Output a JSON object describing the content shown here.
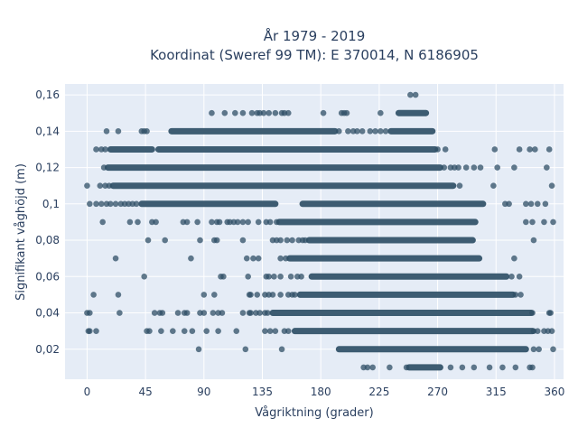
{
  "chart_data": {
    "type": "scatter",
    "title_line1": "År 1979 - 2019",
    "title_line2": "Koordinat (Sweref 99 TM): E 370014, N 6186905",
    "xlabel": "Vågriktning (grader)",
    "ylabel": "Signifikant våghöjd (m)",
    "xlim": [
      -17,
      367
    ],
    "ylim": [
      0.0035,
      0.166
    ],
    "x_ticks": [
      0,
      45,
      90,
      135,
      180,
      225,
      270,
      315,
      360
    ],
    "x_tick_labels": [
      "0",
      "45",
      "90",
      "135",
      "180",
      "225",
      "270",
      "315",
      "360"
    ],
    "y_ticks": [
      0.02,
      0.04,
      0.06,
      0.08,
      0.1,
      0.12,
      0.14,
      0.16
    ],
    "y_tick_labels": [
      "0,02",
      "0,04",
      "0,06",
      "0,08",
      "0,1",
      "0,12",
      "0,14",
      "0,16"
    ],
    "grid": true,
    "plot_background": "#e5ecf6",
    "marker_color": "#2f4f66",
    "levels": [
      {
        "y": 0.01,
        "bands": [
          [
            248,
            272
          ]
        ],
        "x": [
          213,
          216,
          220,
          233,
          246,
          280,
          289,
          298,
          310,
          320,
          330,
          341,
          343
        ]
      },
      {
        "y": 0.02,
        "bands": [
          [
            194,
            338
          ]
        ],
        "x": [
          86,
          122,
          150,
          344,
          348,
          359
        ]
      },
      {
        "y": 0.03,
        "bands": [
          [
            160,
            343
          ]
        ],
        "x": [
          1,
          2,
          7,
          46,
          48,
          57,
          66,
          75,
          81,
          92,
          101,
          115,
          137,
          141,
          145,
          152,
          155,
          344,
          347,
          352,
          355,
          358
        ]
      },
      {
        "y": 0.04,
        "bands": [
          [
            143,
            342
          ]
        ],
        "x": [
          0,
          2,
          25,
          52,
          56,
          58,
          70,
          75,
          77,
          87,
          90,
          97,
          101,
          104,
          120,
          125,
          126,
          130,
          133,
          137,
          139,
          343,
          356,
          357
        ]
      },
      {
        "y": 0.05,
        "bands": [
          [
            164,
            328
          ]
        ],
        "x": [
          5,
          24,
          90,
          98,
          125,
          126,
          131,
          137,
          140,
          143,
          149,
          155,
          158,
          160,
          330,
          334
        ]
      },
      {
        "y": 0.06,
        "bands": [
          [
            173,
            323
          ]
        ],
        "x": [
          44,
          103,
          105,
          124,
          138,
          140,
          144,
          149,
          157,
          162,
          165,
          327,
          333
        ]
      },
      {
        "y": 0.07,
        "bands": [
          [
            156,
            302
          ]
        ],
        "x": [
          22,
          80,
          123,
          128,
          132,
          149,
          153,
          329
        ]
      },
      {
        "y": 0.08,
        "bands": [
          [
            171,
            297
          ]
        ],
        "x": [
          47,
          60,
          87,
          98,
          100,
          120,
          143,
          146,
          149,
          154,
          158,
          163,
          166,
          168,
          344
        ]
      },
      {
        "y": 0.09,
        "bands": [
          [
            148,
            299
          ]
        ],
        "x": [
          12,
          33,
          39,
          50,
          53,
          74,
          77,
          85,
          96,
          100,
          102,
          108,
          110,
          113,
          116,
          120,
          124,
          132,
          138,
          141,
          146,
          338,
          343,
          352,
          359
        ]
      },
      {
        "y": 0.1,
        "bands": [
          [
            166,
            305
          ],
          [
            42,
            145
          ]
        ],
        "x": [
          2,
          7,
          11,
          15,
          18,
          22,
          26,
          29,
          32,
          35,
          38,
          322,
          325,
          338,
          342,
          347,
          353
        ]
      },
      {
        "y": 0.11,
        "bands": [
          [
            20,
            282
          ]
        ],
        "x": [
          0,
          10,
          14,
          17,
          287,
          313,
          358
        ]
      },
      {
        "y": 0.12,
        "bands": [
          [
            16,
            272
          ]
        ],
        "x": [
          13,
          275,
          280,
          283,
          286,
          292,
          298,
          303,
          316,
          329,
          354
        ]
      },
      {
        "y": 0.13,
        "bands": [
          [
            55,
            268
          ],
          [
            18,
            50
          ]
        ],
        "x": [
          7,
          11,
          14,
          270,
          276,
          314,
          333,
          341,
          345,
          356
        ]
      },
      {
        "y": 0.14,
        "bands": [
          [
            65,
            191
          ],
          [
            234,
            266
          ]
        ],
        "x": [
          15,
          24,
          42,
          44,
          46,
          194,
          201,
          205,
          208,
          212,
          218,
          222,
          226,
          230
        ]
      },
      {
        "y": 0.15,
        "bands": [
          [
            240,
            261
          ]
        ],
        "x": [
          96,
          106,
          114,
          120,
          127,
          131,
          133,
          136,
          140,
          145,
          150,
          152,
          155,
          182,
          196,
          198,
          200,
          226
        ]
      },
      {
        "y": 0.16,
        "bands": [],
        "x": [
          249,
          253
        ]
      }
    ]
  }
}
